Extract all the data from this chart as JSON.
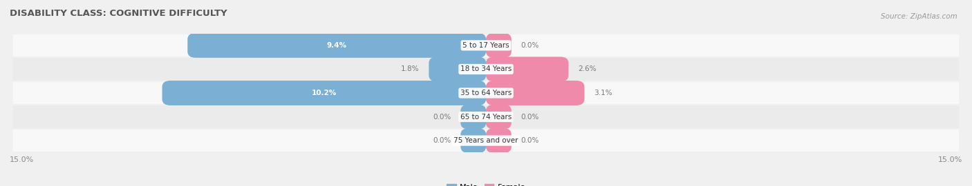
{
  "title": "DISABILITY CLASS: COGNITIVE DIFFICULTY",
  "source": "Source: ZipAtlas.com",
  "categories": [
    "5 to 17 Years",
    "18 to 34 Years",
    "35 to 64 Years",
    "65 to 74 Years",
    "75 Years and over"
  ],
  "male_values": [
    9.4,
    1.8,
    10.2,
    0.0,
    0.0
  ],
  "female_values": [
    0.0,
    2.6,
    3.1,
    0.0,
    0.0
  ],
  "male_color": "#7bafd4",
  "female_color": "#f08aab",
  "bar_height": 0.52,
  "xlim": 15.0,
  "axis_label_left": "15.0%",
  "axis_label_right": "15.0%",
  "bg_color": "#f0f0f0",
  "row_colors": [
    "#f8f8f8",
    "#ebebeb"
  ],
  "title_fontsize": 9.5,
  "source_fontsize": 7.5,
  "label_fontsize": 7.5,
  "category_fontsize": 7.5,
  "legend_fontsize": 8,
  "axis_tick_fontsize": 8,
  "min_stub_val": 0.8,
  "inside_label_threshold": 3.0
}
